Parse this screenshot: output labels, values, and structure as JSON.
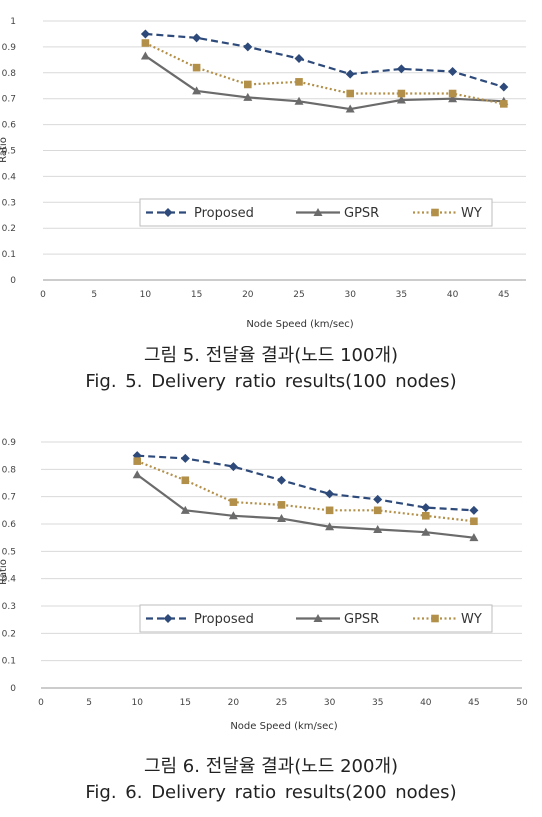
{
  "chart_data": [
    {
      "type": "line",
      "xlabel": "Node Speed (km/sec)",
      "ylabel": "Ratio",
      "x_ticks": [
        0,
        5,
        10,
        15,
        20,
        25,
        30,
        35,
        40,
        45
      ],
      "y_ticks": [
        0,
        0.1,
        0.2,
        0.3,
        0.4,
        0.5,
        0.6,
        0.7,
        0.8,
        0.9,
        1
      ],
      "xlim": [
        0,
        50
      ],
      "ylim": [
        0,
        1
      ],
      "grid": "horizontal",
      "legend_position": "inside-middle",
      "x": [
        10,
        15,
        20,
        25,
        30,
        35,
        40,
        45
      ],
      "series": [
        {
          "name": "Proposed",
          "values": [
            0.95,
            0.935,
            0.9,
            0.855,
            0.795,
            0.815,
            0.805,
            0.745
          ],
          "color": "#2d4a7a",
          "line": "dashed",
          "marker": "diamond"
        },
        {
          "name": "GPSR",
          "values": [
            0.865,
            0.73,
            0.705,
            0.69,
            0.66,
            0.695,
            0.7,
            0.69
          ],
          "color": "#6b6b6b",
          "line": "solid",
          "marker": "triangle"
        },
        {
          "name": "WY",
          "values": [
            0.915,
            0.82,
            0.755,
            0.765,
            0.72,
            0.72,
            0.72,
            0.68
          ],
          "color": "#b3904a",
          "line": "dotted",
          "marker": "square"
        }
      ]
    },
    {
      "type": "line",
      "xlabel": "Node Speed (km/sec)",
      "ylabel": "Ratio",
      "x_ticks": [
        0,
        5,
        10,
        15,
        20,
        25,
        30,
        35,
        40,
        45,
        50
      ],
      "y_ticks": [
        0,
        0.1,
        0.2,
        0.3,
        0.4,
        0.5,
        0.6,
        0.7,
        0.8,
        0.9
      ],
      "xlim": [
        0,
        50
      ],
      "ylim": [
        0,
        0.9
      ],
      "grid": "horizontal",
      "legend_position": "inside-middle",
      "x": [
        10,
        15,
        20,
        25,
        30,
        35,
        40,
        45
      ],
      "series": [
        {
          "name": "Proposed",
          "values": [
            0.85,
            0.84,
            0.81,
            0.76,
            0.71,
            0.69,
            0.66,
            0.65
          ],
          "color": "#2d4a7a",
          "line": "dashed",
          "marker": "diamond"
        },
        {
          "name": "GPSR",
          "values": [
            0.78,
            0.65,
            0.63,
            0.62,
            0.59,
            0.58,
            0.57,
            0.55
          ],
          "color": "#6b6b6b",
          "line": "solid",
          "marker": "triangle"
        },
        {
          "name": "WY",
          "values": [
            0.83,
            0.76,
            0.68,
            0.67,
            0.65,
            0.65,
            0.63,
            0.61
          ],
          "color": "#b3904a",
          "line": "dotted",
          "marker": "square"
        }
      ]
    }
  ],
  "captions": [
    {
      "ko": "그림 5. 전달율 결과(노드 100개)",
      "en": "Fig. 5. Delivery ratio results(100 nodes)"
    },
    {
      "ko": "그림 6. 전달율 결과(노드 200개)",
      "en": "Fig. 6. Delivery ratio results(200 nodes)"
    }
  ]
}
